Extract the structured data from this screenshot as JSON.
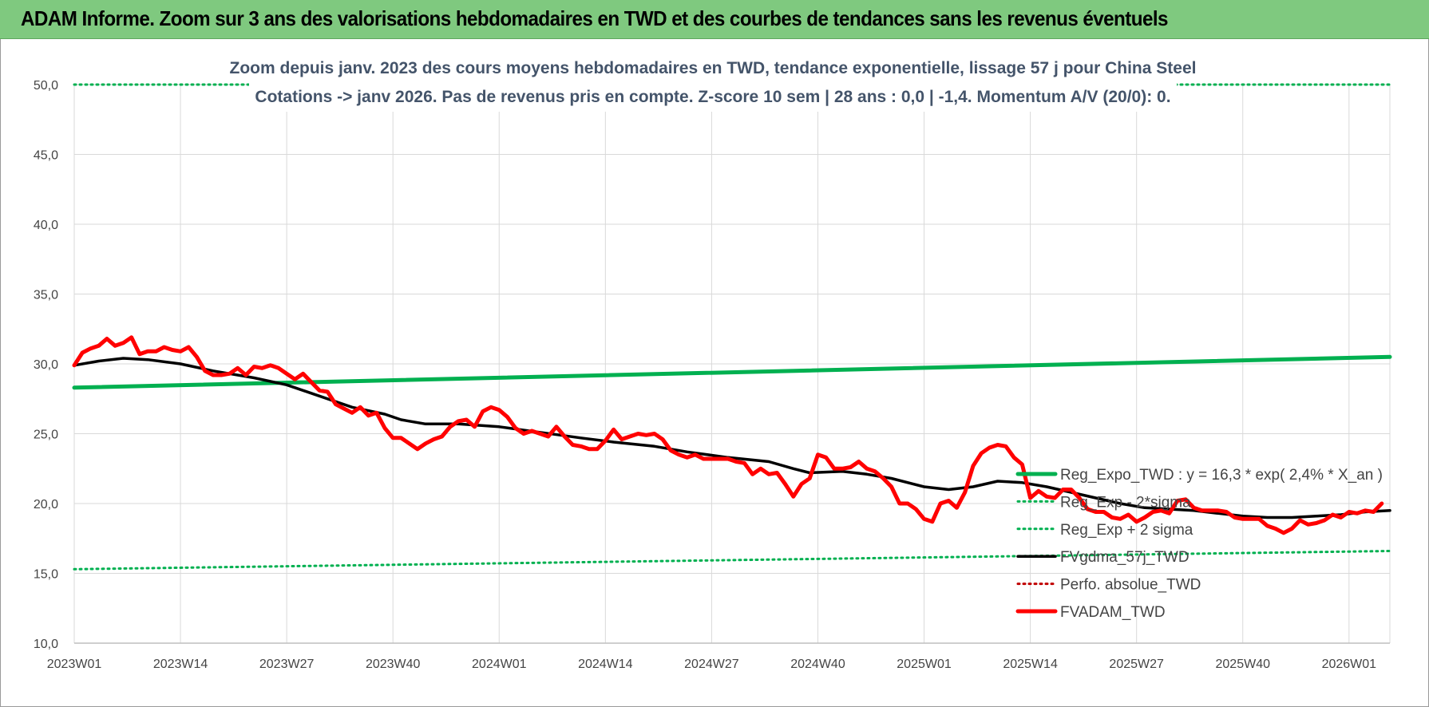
{
  "header": {
    "title": "ADAM Informe. Zoom sur 3 ans des valorisations hebdomadaires en TWD et des courbes de tendances sans les revenus éventuels"
  },
  "colors": {
    "header_bg": "#7fc97f",
    "trend_green": "#00b050",
    "red": "#ff0000",
    "black": "#000000",
    "grid": "#d9d9d9",
    "title_text": "#44546a"
  },
  "chart_data": {
    "type": "line",
    "title_line1": "Zoom depuis janv. 2023 des cours moyens hebdomadaires en TWD, tendance exponentielle, lissage 57 j pour China Steel",
    "title_line2": "Cotations -> janv 2026. Pas de revenus pris en compte. Z-score 10 sem | 28 ans : 0,0 | -1,4. Momentum A/V (20/0): 0.",
    "ylim": [
      10,
      50
    ],
    "yticks": [
      "10,0",
      "15,0",
      "20,0",
      "25,0",
      "30,0",
      "35,0",
      "40,0",
      "45,0",
      "50,0"
    ],
    "xticks": [
      "2023W01",
      "2023W14",
      "2023W27",
      "2023W40",
      "2024W01",
      "2024W14",
      "2024W27",
      "2024W40",
      "2025W01",
      "2025W14",
      "2025W27",
      "2025W40",
      "2026W01"
    ],
    "weeks": 162,
    "grid": true,
    "legend_position": "bottom-right",
    "series": [
      {
        "name": "Reg_Expo_TWD : y = 16,3 * exp( 2,4% *  X_an )",
        "style": "solid-thick",
        "color": "#00b050",
        "points": [
          [
            0,
            28.3
          ],
          [
            161,
            30.5
          ]
        ]
      },
      {
        "name": "Reg_Exp - 2*sigma",
        "style": "dotted",
        "color": "#00b050",
        "points": [
          [
            0,
            15.3
          ],
          [
            161,
            16.6
          ]
        ]
      },
      {
        "name": "Reg_Exp + 2 sigma",
        "style": "dotted",
        "color": "#00b050",
        "points": [
          [
            0,
            50.0
          ],
          [
            161,
            50.0
          ]
        ]
      },
      {
        "name": "FVgdma_57j_TWD",
        "style": "solid",
        "color": "#000000",
        "points": [
          [
            0,
            29.9
          ],
          [
            3,
            30.2
          ],
          [
            6,
            30.4
          ],
          [
            9,
            30.3
          ],
          [
            13,
            30.0
          ],
          [
            17,
            29.5
          ],
          [
            22,
            29.0
          ],
          [
            26,
            28.5
          ],
          [
            30,
            27.7
          ],
          [
            34,
            26.9
          ],
          [
            38,
            26.4
          ],
          [
            40,
            26.0
          ],
          [
            43,
            25.7
          ],
          [
            47,
            25.7
          ],
          [
            52,
            25.5
          ],
          [
            57,
            25.1
          ],
          [
            62,
            24.7
          ],
          [
            66,
            24.4
          ],
          [
            71,
            24.1
          ],
          [
            75,
            23.7
          ],
          [
            80,
            23.3
          ],
          [
            85,
            23.0
          ],
          [
            88,
            22.5
          ],
          [
            90,
            22.2
          ],
          [
            94,
            22.3
          ],
          [
            97,
            22.1
          ],
          [
            100,
            21.8
          ],
          [
            104,
            21.2
          ],
          [
            107,
            21.0
          ],
          [
            110,
            21.2
          ],
          [
            113,
            21.6
          ],
          [
            116,
            21.5
          ],
          [
            119,
            21.2
          ],
          [
            122,
            20.8
          ],
          [
            125,
            20.4
          ],
          [
            128,
            20.0
          ],
          [
            131,
            19.7
          ],
          [
            134,
            19.6
          ],
          [
            137,
            19.5
          ],
          [
            140,
            19.3
          ],
          [
            143,
            19.1
          ],
          [
            146,
            19.0
          ],
          [
            149,
            19.0
          ],
          [
            152,
            19.1
          ],
          [
            155,
            19.2
          ],
          [
            158,
            19.4
          ],
          [
            161,
            19.5
          ]
        ]
      },
      {
        "name": "Perfo. absolue_TWD",
        "style": "dotted",
        "color": "#c00000",
        "points": []
      },
      {
        "name": "FVADAM_TWD",
        "style": "solid-thick",
        "color": "#ff0000",
        "points": [
          [
            0,
            29.9
          ],
          [
            1,
            30.8
          ],
          [
            2,
            31.1
          ],
          [
            3,
            31.3
          ],
          [
            4,
            31.8
          ],
          [
            5,
            31.3
          ],
          [
            6,
            31.5
          ],
          [
            7,
            31.9
          ],
          [
            8,
            30.7
          ],
          [
            9,
            30.9
          ],
          [
            10,
            30.9
          ],
          [
            11,
            31.2
          ],
          [
            12,
            31.0
          ],
          [
            13,
            30.9
          ],
          [
            14,
            31.2
          ],
          [
            15,
            30.5
          ],
          [
            16,
            29.5
          ],
          [
            17,
            29.2
          ],
          [
            18,
            29.2
          ],
          [
            19,
            29.3
          ],
          [
            20,
            29.7
          ],
          [
            21,
            29.2
          ],
          [
            22,
            29.8
          ],
          [
            23,
            29.7
          ],
          [
            24,
            29.9
          ],
          [
            25,
            29.7
          ],
          [
            26,
            29.3
          ],
          [
            27,
            28.9
          ],
          [
            28,
            29.3
          ],
          [
            29,
            28.7
          ],
          [
            30,
            28.1
          ],
          [
            31,
            28.0
          ],
          [
            32,
            27.1
          ],
          [
            33,
            26.8
          ],
          [
            34,
            26.5
          ],
          [
            35,
            26.9
          ],
          [
            36,
            26.3
          ],
          [
            37,
            26.5
          ],
          [
            38,
            25.4
          ],
          [
            39,
            24.7
          ],
          [
            40,
            24.7
          ],
          [
            41,
            24.3
          ],
          [
            42,
            23.9
          ],
          [
            43,
            24.3
          ],
          [
            44,
            24.6
          ],
          [
            45,
            24.8
          ],
          [
            46,
            25.5
          ],
          [
            47,
            25.9
          ],
          [
            48,
            26.0
          ],
          [
            49,
            25.5
          ],
          [
            50,
            26.6
          ],
          [
            51,
            26.9
          ],
          [
            52,
            26.7
          ],
          [
            53,
            26.2
          ],
          [
            54,
            25.4
          ],
          [
            55,
            25.0
          ],
          [
            56,
            25.2
          ],
          [
            57,
            25.0
          ],
          [
            58,
            24.8
          ],
          [
            59,
            25.5
          ],
          [
            60,
            24.8
          ],
          [
            61,
            24.2
          ],
          [
            62,
            24.1
          ],
          [
            63,
            23.9
          ],
          [
            64,
            23.9
          ],
          [
            65,
            24.5
          ],
          [
            66,
            25.3
          ],
          [
            67,
            24.6
          ],
          [
            68,
            24.8
          ],
          [
            69,
            25.0
          ],
          [
            70,
            24.9
          ],
          [
            71,
            25.0
          ],
          [
            72,
            24.6
          ],
          [
            73,
            23.8
          ],
          [
            74,
            23.5
          ],
          [
            75,
            23.3
          ],
          [
            76,
            23.5
          ],
          [
            77,
            23.2
          ],
          [
            78,
            23.2
          ],
          [
            79,
            23.2
          ],
          [
            80,
            23.2
          ],
          [
            81,
            23.0
          ],
          [
            82,
            22.9
          ],
          [
            83,
            22.1
          ],
          [
            84,
            22.5
          ],
          [
            85,
            22.1
          ],
          [
            86,
            22.2
          ],
          [
            87,
            21.4
          ],
          [
            88,
            20.5
          ],
          [
            89,
            21.4
          ],
          [
            90,
            21.8
          ],
          [
            91,
            23.5
          ],
          [
            92,
            23.3
          ],
          [
            93,
            22.5
          ],
          [
            94,
            22.5
          ],
          [
            95,
            22.6
          ],
          [
            96,
            23.0
          ],
          [
            97,
            22.5
          ],
          [
            98,
            22.3
          ],
          [
            99,
            21.8
          ],
          [
            100,
            21.2
          ],
          [
            101,
            20.0
          ],
          [
            102,
            20.0
          ],
          [
            103,
            19.6
          ],
          [
            104,
            18.9
          ],
          [
            105,
            18.7
          ],
          [
            106,
            20.0
          ],
          [
            107,
            20.2
          ],
          [
            108,
            19.7
          ],
          [
            109,
            20.8
          ],
          [
            110,
            22.7
          ],
          [
            111,
            23.6
          ],
          [
            112,
            24.0
          ],
          [
            113,
            24.2
          ],
          [
            114,
            24.1
          ],
          [
            115,
            23.3
          ],
          [
            116,
            22.8
          ],
          [
            117,
            20.4
          ],
          [
            118,
            20.9
          ],
          [
            119,
            20.5
          ],
          [
            120,
            20.4
          ],
          [
            121,
            21.0
          ],
          [
            122,
            21.0
          ],
          [
            123,
            20.4
          ],
          [
            124,
            19.6
          ],
          [
            125,
            19.4
          ],
          [
            126,
            19.4
          ],
          [
            127,
            19.0
          ],
          [
            128,
            18.9
          ],
          [
            129,
            19.2
          ],
          [
            130,
            18.7
          ],
          [
            131,
            19.0
          ],
          [
            132,
            19.4
          ],
          [
            133,
            19.5
          ],
          [
            134,
            19.3
          ],
          [
            135,
            20.2
          ],
          [
            136,
            20.3
          ],
          [
            137,
            19.7
          ],
          [
            138,
            19.5
          ],
          [
            139,
            19.5
          ],
          [
            140,
            19.5
          ],
          [
            141,
            19.4
          ],
          [
            142,
            19.0
          ],
          [
            143,
            18.9
          ],
          [
            144,
            18.9
          ],
          [
            145,
            18.9
          ],
          [
            146,
            18.4
          ],
          [
            147,
            18.2
          ],
          [
            148,
            17.9
          ],
          [
            149,
            18.2
          ],
          [
            150,
            18.8
          ],
          [
            151,
            18.5
          ],
          [
            152,
            18.6
          ],
          [
            153,
            18.8
          ],
          [
            154,
            19.2
          ],
          [
            155,
            19.0
          ],
          [
            156,
            19.4
          ],
          [
            157,
            19.3
          ],
          [
            158,
            19.5
          ],
          [
            159,
            19.4
          ],
          [
            160,
            20.0
          ]
        ]
      }
    ]
  }
}
